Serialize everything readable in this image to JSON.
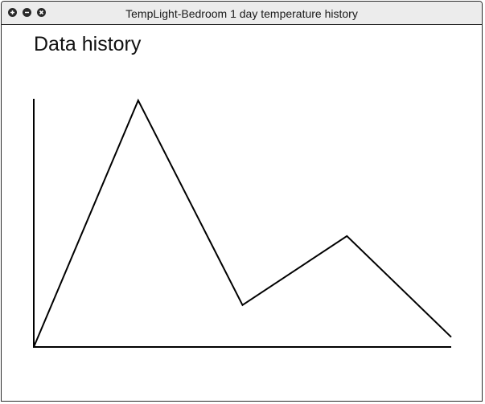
{
  "window": {
    "title": "TempLight-Bedroom 1 day temperature history",
    "controls": {
      "maximize_icon": "plus-icon",
      "minimize_icon": "minus-icon",
      "close_icon": "close-icon"
    }
  },
  "main": {
    "heading": "Data history"
  },
  "chart_data": {
    "type": "line",
    "title": "",
    "xlabel": "",
    "ylabel": "",
    "x": [
      0,
      1,
      2,
      3,
      4
    ],
    "series": [
      {
        "values": [
          0.0,
          1.0,
          0.17,
          0.45,
          0.04
        ]
      }
    ],
    "xlim": [
      0,
      4
    ],
    "ylim": [
      0,
      1
    ],
    "grid": false,
    "line_color": "#000000",
    "axis_color": "#000000"
  }
}
